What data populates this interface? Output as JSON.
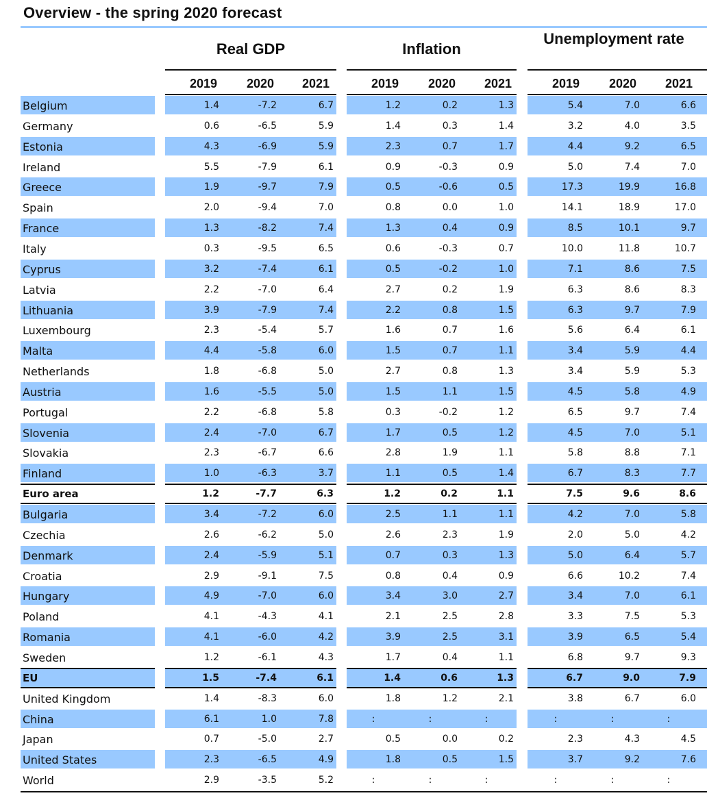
{
  "title": "Overview - the spring 2020 forecast",
  "groups": [
    {
      "label": "Real GDP"
    },
    {
      "label": "Inflation"
    },
    {
      "label": "Unemployment rate"
    }
  ],
  "years": [
    "2019",
    "2020",
    "2021"
  ],
  "rows": [
    {
      "country": "Belgium",
      "values": [
        "1.4",
        "-7.2",
        "6.7",
        "1.2",
        "0.2",
        "1.3",
        "5.4",
        "7.0",
        "6.6"
      ],
      "shaded": true
    },
    {
      "country": "Germany",
      "values": [
        "0.6",
        "-6.5",
        "5.9",
        "1.4",
        "0.3",
        "1.4",
        "3.2",
        "4.0",
        "3.5"
      ],
      "shaded": false
    },
    {
      "country": "Estonia",
      "values": [
        "4.3",
        "-6.9",
        "5.9",
        "2.3",
        "0.7",
        "1.7",
        "4.4",
        "9.2",
        "6.5"
      ],
      "shaded": true
    },
    {
      "country": "Ireland",
      "values": [
        "5.5",
        "-7.9",
        "6.1",
        "0.9",
        "-0.3",
        "0.9",
        "5.0",
        "7.4",
        "7.0"
      ],
      "shaded": false
    },
    {
      "country": "Greece",
      "values": [
        "1.9",
        "-9.7",
        "7.9",
        "0.5",
        "-0.6",
        "0.5",
        "17.3",
        "19.9",
        "16.8"
      ],
      "shaded": true
    },
    {
      "country": "Spain",
      "values": [
        "2.0",
        "-9.4",
        "7.0",
        "0.8",
        "0.0",
        "1.0",
        "14.1",
        "18.9",
        "17.0"
      ],
      "shaded": false
    },
    {
      "country": "France",
      "values": [
        "1.3",
        "-8.2",
        "7.4",
        "1.3",
        "0.4",
        "0.9",
        "8.5",
        "10.1",
        "9.7"
      ],
      "shaded": true
    },
    {
      "country": "Italy",
      "values": [
        "0.3",
        "-9.5",
        "6.5",
        "0.6",
        "-0.3",
        "0.7",
        "10.0",
        "11.8",
        "10.7"
      ],
      "shaded": false
    },
    {
      "country": "Cyprus",
      "values": [
        "3.2",
        "-7.4",
        "6.1",
        "0.5",
        "-0.2",
        "1.0",
        "7.1",
        "8.6",
        "7.5"
      ],
      "shaded": true
    },
    {
      "country": "Latvia",
      "values": [
        "2.2",
        "-7.0",
        "6.4",
        "2.7",
        "0.2",
        "1.9",
        "6.3",
        "8.6",
        "8.3"
      ],
      "shaded": false
    },
    {
      "country": "Lithuania",
      "values": [
        "3.9",
        "-7.9",
        "7.4",
        "2.2",
        "0.8",
        "1.5",
        "6.3",
        "9.7",
        "7.9"
      ],
      "shaded": true
    },
    {
      "country": "Luxembourg",
      "values": [
        "2.3",
        "-5.4",
        "5.7",
        "1.6",
        "0.7",
        "1.6",
        "5.6",
        "6.4",
        "6.1"
      ],
      "shaded": false
    },
    {
      "country": "Malta",
      "values": [
        "4.4",
        "-5.8",
        "6.0",
        "1.5",
        "0.7",
        "1.1",
        "3.4",
        "5.9",
        "4.4"
      ],
      "shaded": true
    },
    {
      "country": "Netherlands",
      "values": [
        "1.8",
        "-6.8",
        "5.0",
        "2.7",
        "0.8",
        "1.3",
        "3.4",
        "5.9",
        "5.3"
      ],
      "shaded": false
    },
    {
      "country": "Austria",
      "values": [
        "1.6",
        "-5.5",
        "5.0",
        "1.5",
        "1.1",
        "1.5",
        "4.5",
        "5.8",
        "4.9"
      ],
      "shaded": true
    },
    {
      "country": "Portugal",
      "values": [
        "2.2",
        "-6.8",
        "5.8",
        "0.3",
        "-0.2",
        "1.2",
        "6.5",
        "9.7",
        "7.4"
      ],
      "shaded": false
    },
    {
      "country": "Slovenia",
      "values": [
        "2.4",
        "-7.0",
        "6.7",
        "1.7",
        "0.5",
        "1.2",
        "4.5",
        "7.0",
        "5.1"
      ],
      "shaded": true
    },
    {
      "country": "Slovakia",
      "values": [
        "2.3",
        "-6.7",
        "6.6",
        "2.8",
        "1.9",
        "1.1",
        "5.8",
        "8.8",
        "7.1"
      ],
      "shaded": false
    },
    {
      "country": "Finland",
      "values": [
        "1.0",
        "-6.3",
        "3.7",
        "1.1",
        "0.5",
        "1.4",
        "6.7",
        "8.3",
        "7.7"
      ],
      "shaded": true
    },
    {
      "country": "Euro area",
      "values": [
        "1.2",
        "-7.7",
        "6.3",
        "1.2",
        "0.2",
        "1.1",
        "7.5",
        "9.6",
        "8.6"
      ],
      "shaded": false,
      "bold": true
    },
    {
      "country": "Bulgaria",
      "values": [
        "3.4",
        "-7.2",
        "6.0",
        "2.5",
        "1.1",
        "1.1",
        "4.2",
        "7.0",
        "5.8"
      ],
      "shaded": true
    },
    {
      "country": "Czechia",
      "values": [
        "2.6",
        "-6.2",
        "5.0",
        "2.6",
        "2.3",
        "1.9",
        "2.0",
        "5.0",
        "4.2"
      ],
      "shaded": false
    },
    {
      "country": "Denmark",
      "values": [
        "2.4",
        "-5.9",
        "5.1",
        "0.7",
        "0.3",
        "1.3",
        "5.0",
        "6.4",
        "5.7"
      ],
      "shaded": true
    },
    {
      "country": "Croatia",
      "values": [
        "2.9",
        "-9.1",
        "7.5",
        "0.8",
        "0.4",
        "0.9",
        "6.6",
        "10.2",
        "7.4"
      ],
      "shaded": false
    },
    {
      "country": "Hungary",
      "values": [
        "4.9",
        "-7.0",
        "6.0",
        "3.4",
        "3.0",
        "2.7",
        "3.4",
        "7.0",
        "6.1"
      ],
      "shaded": true
    },
    {
      "country": "Poland",
      "values": [
        "4.1",
        "-4.3",
        "4.1",
        "2.1",
        "2.5",
        "2.8",
        "3.3",
        "7.5",
        "5.3"
      ],
      "shaded": false
    },
    {
      "country": "Romania",
      "values": [
        "4.1",
        "-6.0",
        "4.2",
        "3.9",
        "2.5",
        "3.1",
        "3.9",
        "6.5",
        "5.4"
      ],
      "shaded": true
    },
    {
      "country": "Sweden",
      "values": [
        "1.2",
        "-6.1",
        "4.3",
        "1.7",
        "0.4",
        "1.1",
        "6.8",
        "9.7",
        "9.3"
      ],
      "shaded": false
    },
    {
      "country": "EU",
      "values": [
        "1.5",
        "-7.4",
        "6.1",
        "1.4",
        "0.6",
        "1.3",
        "6.7",
        "9.0",
        "7.9"
      ],
      "shaded": true,
      "bold": true
    },
    {
      "country": "United Kingdom",
      "values": [
        "1.4",
        "-8.3",
        "6.0",
        "1.8",
        "1.2",
        "2.1",
        "3.8",
        "6.7",
        "6.0"
      ],
      "shaded": false
    },
    {
      "country": "China",
      "values": [
        "6.1",
        "1.0",
        "7.8",
        ":",
        ":",
        ":",
        ":",
        ":",
        ":"
      ],
      "shaded": true
    },
    {
      "country": "Japan",
      "values": [
        "0.7",
        "-5.0",
        "2.7",
        "0.5",
        "0.0",
        "0.2",
        "2.3",
        "4.3",
        "4.5"
      ],
      "shaded": false
    },
    {
      "country": "United States",
      "values": [
        "2.3",
        "-6.5",
        "4.9",
        "1.8",
        "0.5",
        "1.5",
        "3.7",
        "9.2",
        "7.6"
      ],
      "shaded": true
    },
    {
      "country": "World",
      "values": [
        "2.9",
        "-3.5",
        "5.2",
        ":",
        ":",
        ":",
        ":",
        ":",
        ":"
      ],
      "shaded": false
    }
  ]
}
